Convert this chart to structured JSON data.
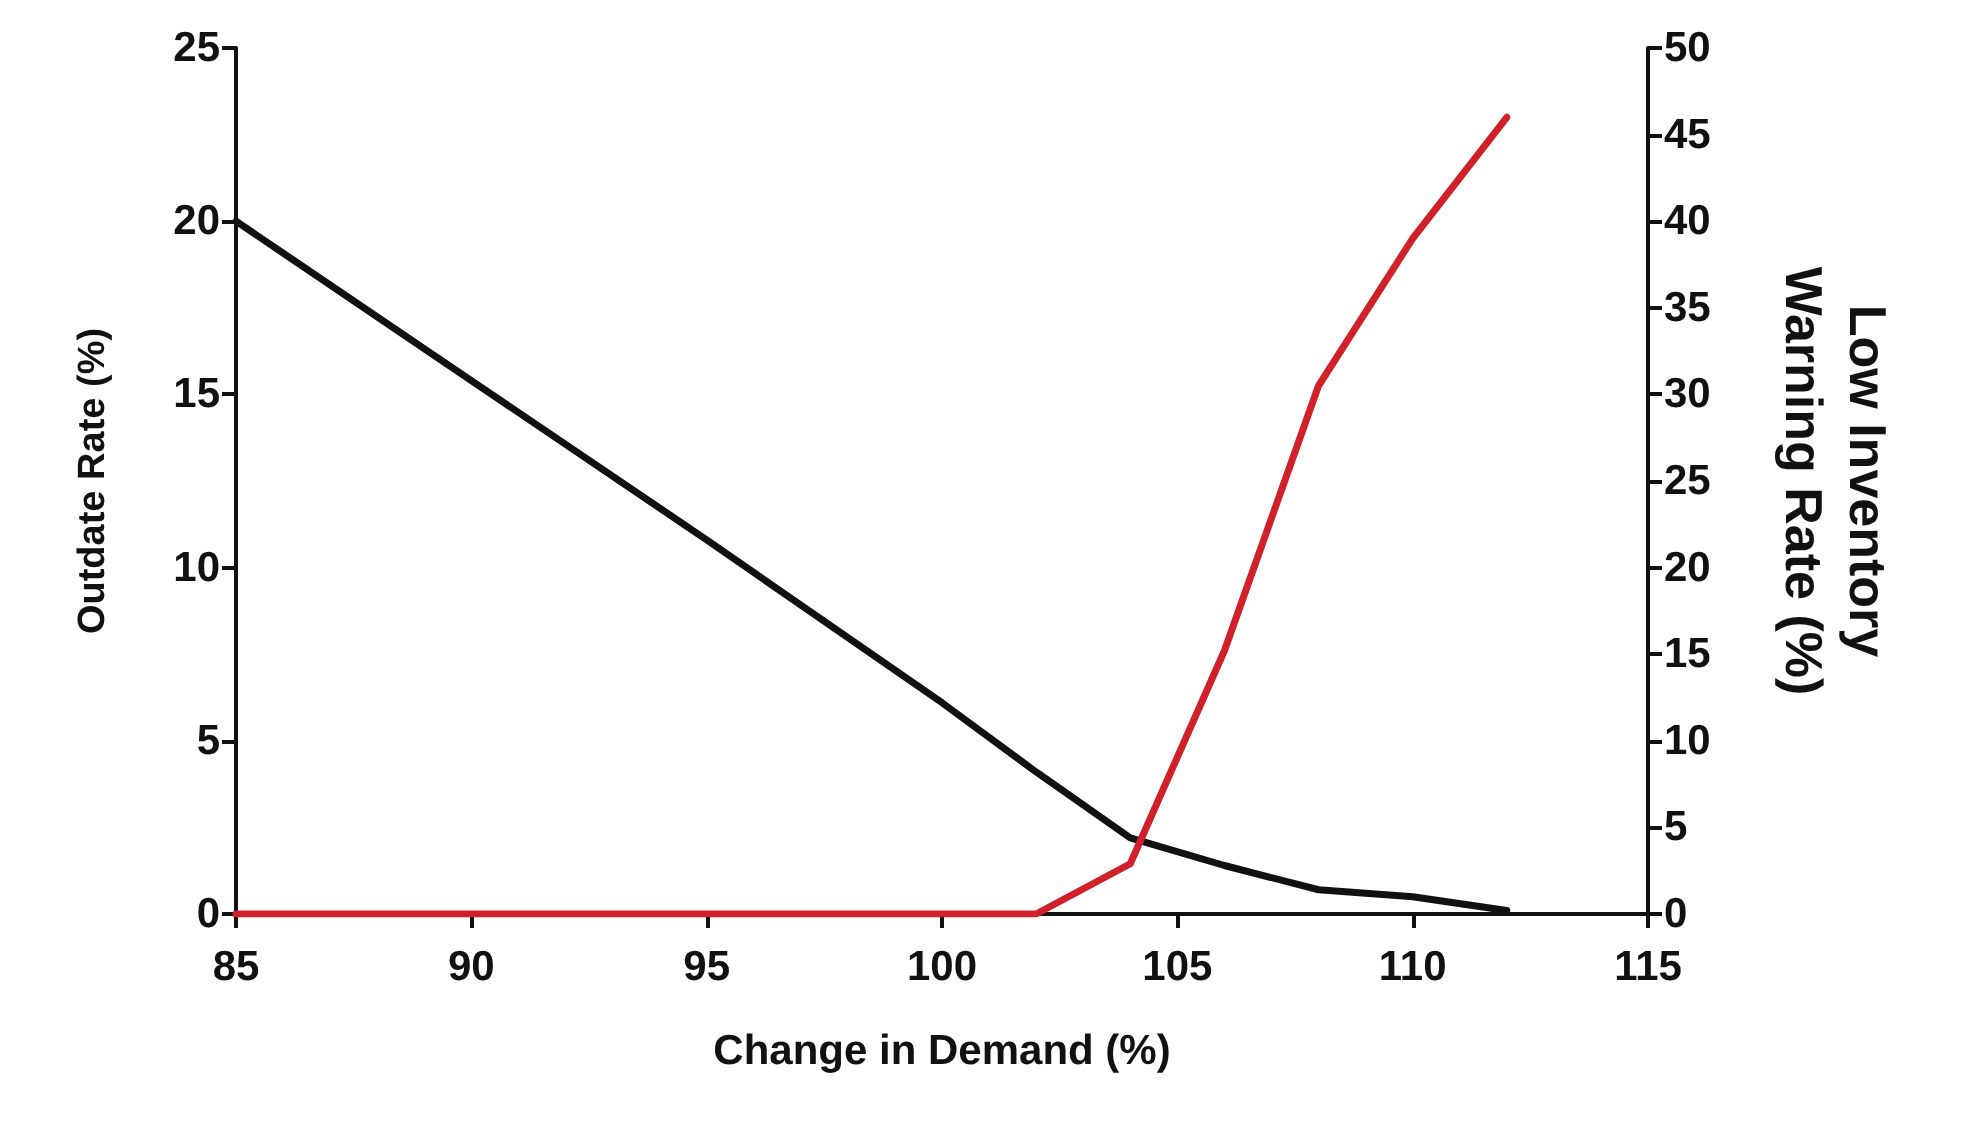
{
  "chart_data": {
    "type": "line",
    "xlabel": "Change in Demand (%)",
    "ylabel": "Outdate Rate (%)",
    "y2label": "Low Inventory\nWarning Rate (%)",
    "xlim": [
      85,
      115
    ],
    "xticks": [
      85,
      90,
      95,
      100,
      105,
      110,
      115
    ],
    "ylim": [
      0,
      25
    ],
    "yticks": [
      0,
      5,
      10,
      15,
      20,
      25
    ],
    "y2lim": [
      0,
      50
    ],
    "y2ticks": [
      0,
      5,
      10,
      15,
      20,
      25,
      30,
      35,
      40,
      45,
      50
    ],
    "marker": "none",
    "line_style": "solid",
    "series": [
      {
        "color": "#111111",
        "x": [
          85,
          90,
          95,
          100,
          102,
          104,
          106,
          108,
          110,
          112
        ],
        "values": [
          20,
          15.4,
          10.8,
          6.1,
          4.1,
          2.2,
          1.4,
          0.7,
          0.5,
          0.1
        ]
      },
      {
        "color": "#d0202a",
        "axis": "y2",
        "x": [
          85,
          90,
          95,
          100,
          101,
          102,
          104,
          106,
          108,
          110,
          112
        ],
        "values": [
          0,
          0,
          0,
          0,
          0,
          0,
          2.9,
          15.2,
          30.5,
          39,
          46
        ]
      }
    ]
  }
}
